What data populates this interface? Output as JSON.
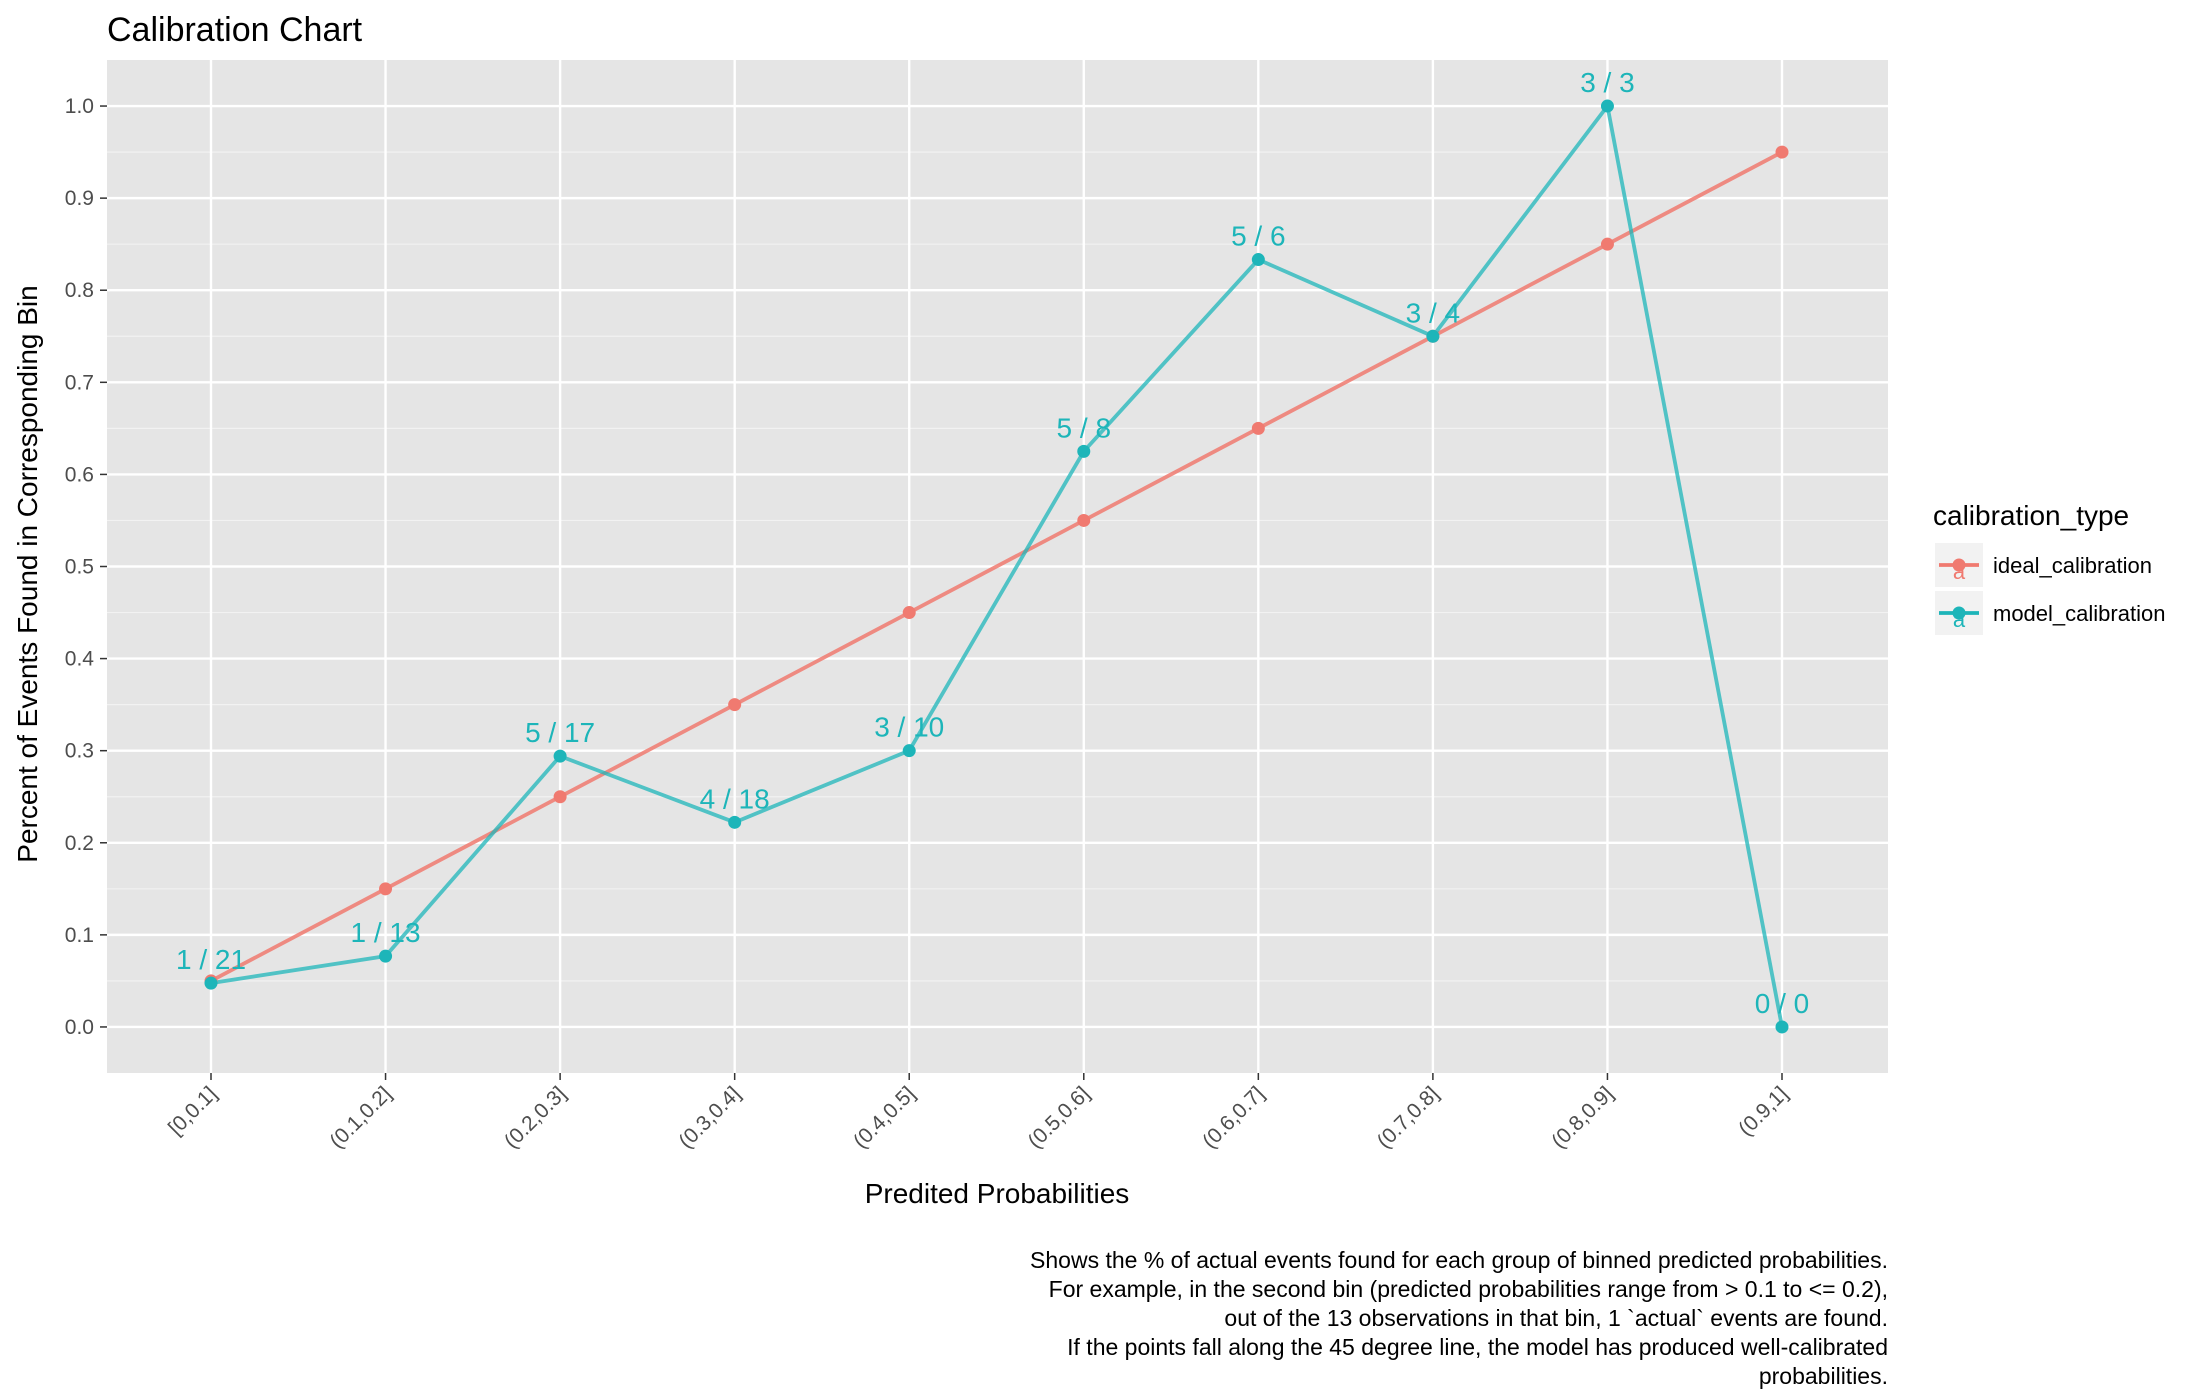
{
  "chart_data": {
    "type": "line",
    "title": "Calibration Chart",
    "xlabel": "Predited Probabilities",
    "ylabel": "Percent of Events Found in Corresponding Bin",
    "categories": [
      "[0,0.1]",
      "(0.1,0.2]",
      "(0.2,0.3]",
      "(0.3,0.4]",
      "(0.4,0.5]",
      "(0.5,0.6]",
      "(0.6,0.7]",
      "(0.7,0.8]",
      "(0.8,0.9]",
      "(0.9,1]"
    ],
    "ylim": [
      -0.05,
      1.05
    ],
    "yticks": [
      "0.0",
      "0.1",
      "0.2",
      "0.3",
      "0.4",
      "0.5",
      "0.6",
      "0.7",
      "0.8",
      "0.9",
      "1.0"
    ],
    "grid": true,
    "legend_position": "right",
    "legend_title": "calibration_type",
    "legend_key_glyph": "a",
    "series": [
      {
        "name": "ideal_calibration",
        "color": "#F07A70",
        "values": [
          0.05,
          0.15,
          0.25,
          0.35,
          0.45,
          0.55,
          0.65,
          0.75,
          0.85,
          0.95
        ]
      },
      {
        "name": "model_calibration",
        "color": "#1DB5B9",
        "values": [
          0.0476,
          0.0769,
          0.2941,
          0.2222,
          0.3,
          0.625,
          0.8333,
          0.75,
          1.0,
          0.0
        ],
        "labels": [
          "1 / 21",
          "1 / 13",
          "5 / 17",
          "4 / 18",
          "3 / 10",
          "5 / 8",
          "5 / 6",
          "3 / 4",
          "3 / 3",
          "0 / 0"
        ]
      }
    ],
    "caption": [
      "Shows the % of actual events found for each group of binned predicted probabilities.",
      "For example, in the second bin (predicted probabilities range from > 0.1 to <= 0.2),",
      "out of the 13 observations in that bin, 1 `actual` events are found.",
      "If the points fall along the 45 degree line, the model has produced well-calibrated",
      "probabilities."
    ]
  }
}
